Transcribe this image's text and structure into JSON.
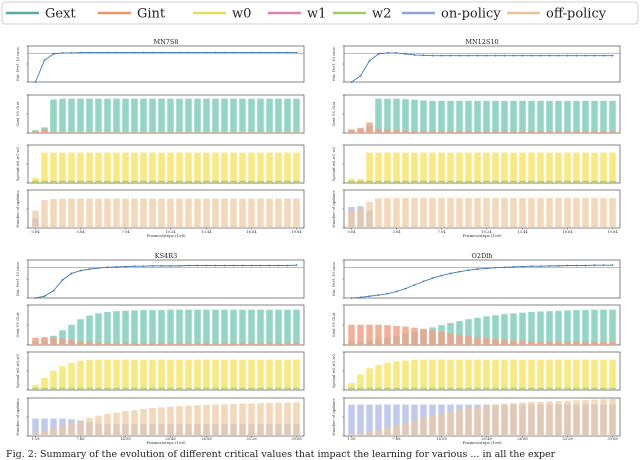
{
  "legend": [
    {
      "label": "Gext",
      "color": "#5aa9a0",
      "kind": "line"
    },
    {
      "label": "Gint",
      "color": "#e8956c",
      "kind": "line"
    },
    {
      "label": "w0",
      "color": "#e9dc5c",
      "kind": "line"
    },
    {
      "label": "w1",
      "color": "#d781b4",
      "kind": "line"
    },
    {
      "label": "w2",
      "color": "#9ccf63",
      "kind": "line"
    },
    {
      "label": "on-policy",
      "color": "#8da4d4",
      "kind": "line"
    },
    {
      "label": "off-policy",
      "color": "#e8c199",
      "kind": "line"
    }
  ],
  "colors": {
    "gext": "#7fcfb8",
    "gint": "#f0a287",
    "w0": "#f7e56a",
    "w1": "#e58fc2",
    "w2": "#a8d672",
    "on": "#a9b6e6",
    "off": "#efc9a0",
    "line": "#3f78b0",
    "frame": "#333333"
  },
  "caption": "Fig. 2: Summary of the evolution of different critical values that impact the learning for various ... in all the exper",
  "chart_data": [
    {
      "type": "bar",
      "title": "MN7S8",
      "xlabel": "Frames/steps (1e6)",
      "xticks": [
        "0.64",
        "3.84",
        "7.04",
        "10.24",
        "13.44",
        "16.64",
        "19.84"
      ],
      "ylabels": [
        "Ext. Perf. 10 runs",
        "Gext VS Gint",
        "Spread w0,w1,w2",
        "Number of updates"
      ],
      "n": 30,
      "series": {
        "perf": [
          0.0,
          0.64,
          0.82,
          0.85,
          0.85,
          0.86,
          0.86,
          0.86,
          0.86,
          0.86,
          0.86,
          0.86,
          0.86,
          0.86,
          0.86,
          0.86,
          0.86,
          0.86,
          0.86,
          0.86,
          0.86,
          0.86,
          0.86,
          0.86,
          0.86,
          0.86,
          0.86,
          0.86,
          0.86,
          0.86
        ],
        "gext": [
          0.08,
          0.16,
          0.96,
          0.98,
          0.98,
          0.98,
          0.98,
          0.98,
          0.98,
          0.98,
          0.98,
          0.98,
          0.98,
          0.98,
          0.98,
          0.98,
          0.98,
          0.98,
          0.98,
          0.98,
          0.98,
          0.98,
          0.98,
          0.98,
          0.98,
          0.98,
          0.98,
          0.98,
          0.98,
          0.98
        ],
        "gint": [
          0.06,
          0.12,
          0.03,
          0.02,
          0.02,
          0.02,
          0.02,
          0.02,
          0.02,
          0.02,
          0.02,
          0.02,
          0.02,
          0.02,
          0.02,
          0.02,
          0.02,
          0.02,
          0.02,
          0.02,
          0.02,
          0.02,
          0.02,
          0.02,
          0.02,
          0.02,
          0.02,
          0.02,
          0.02,
          0.02
        ],
        "w0": [
          0.15,
          0.87,
          0.87,
          0.87,
          0.87,
          0.87,
          0.87,
          0.87,
          0.87,
          0.87,
          0.87,
          0.87,
          0.87,
          0.87,
          0.87,
          0.87,
          0.87,
          0.87,
          0.87,
          0.87,
          0.87,
          0.87,
          0.87,
          0.87,
          0.87,
          0.87,
          0.87,
          0.87,
          0.87,
          0.87
        ],
        "w1": [
          0.06,
          0.06,
          0.06,
          0.06,
          0.06,
          0.06,
          0.06,
          0.06,
          0.06,
          0.06,
          0.06,
          0.06,
          0.06,
          0.06,
          0.06,
          0.06,
          0.06,
          0.06,
          0.06,
          0.06,
          0.06,
          0.06,
          0.06,
          0.06,
          0.06,
          0.06,
          0.06,
          0.06,
          0.06,
          0.06
        ],
        "w2": [
          0.06,
          0.06,
          0.06,
          0.06,
          0.06,
          0.06,
          0.06,
          0.06,
          0.06,
          0.06,
          0.06,
          0.06,
          0.06,
          0.06,
          0.06,
          0.06,
          0.06,
          0.06,
          0.06,
          0.06,
          0.06,
          0.06,
          0.06,
          0.06,
          0.06,
          0.06,
          0.06,
          0.06,
          0.06,
          0.06
        ],
        "on": [
          0.28,
          0.05,
          0.04,
          0.04,
          0.04,
          0.04,
          0.04,
          0.04,
          0.04,
          0.04,
          0.04,
          0.04,
          0.04,
          0.04,
          0.04,
          0.04,
          0.04,
          0.04,
          0.04,
          0.04,
          0.04,
          0.04,
          0.04,
          0.04,
          0.04,
          0.04,
          0.04,
          0.04,
          0.04,
          0.04
        ],
        "off": [
          0.5,
          0.8,
          0.83,
          0.84,
          0.84,
          0.84,
          0.84,
          0.84,
          0.84,
          0.84,
          0.84,
          0.84,
          0.84,
          0.84,
          0.84,
          0.84,
          0.84,
          0.84,
          0.84,
          0.84,
          0.84,
          0.84,
          0.84,
          0.84,
          0.84,
          0.84,
          0.84,
          0.84,
          0.84,
          0.84
        ]
      }
    },
    {
      "type": "bar",
      "title": "MN12S10",
      "xlabel": "Frames/steps (1e6)",
      "xticks": [
        "0.64",
        "3.84",
        "7.04",
        "10.24",
        "13.44",
        "16.64",
        "19.84"
      ],
      "ylabels": [
        "Ext. Perf. 10 runs",
        "Gext VS Gint",
        "Spread w0,w1,w2",
        "Number of updates"
      ],
      "n": 30,
      "series": {
        "perf": [
          0.0,
          0.18,
          0.62,
          0.82,
          0.85,
          0.85,
          0.82,
          0.79,
          0.78,
          0.77,
          0.77,
          0.77,
          0.77,
          0.77,
          0.77,
          0.77,
          0.77,
          0.77,
          0.77,
          0.77,
          0.77,
          0.77,
          0.77,
          0.77,
          0.77,
          0.77,
          0.77,
          0.77,
          0.77,
          0.77
        ],
        "gext": [
          0.1,
          0.1,
          0.2,
          0.98,
          0.98,
          0.98,
          0.97,
          0.95,
          0.93,
          0.92,
          0.92,
          0.92,
          0.92,
          0.92,
          0.92,
          0.92,
          0.92,
          0.92,
          0.92,
          0.92,
          0.92,
          0.92,
          0.92,
          0.92,
          0.92,
          0.92,
          0.92,
          0.92,
          0.92,
          0.92
        ],
        "gint": [
          0.1,
          0.15,
          0.3,
          0.12,
          0.1,
          0.08,
          0.07,
          0.06,
          0.06,
          0.06,
          0.06,
          0.06,
          0.06,
          0.06,
          0.06,
          0.06,
          0.06,
          0.06,
          0.06,
          0.06,
          0.06,
          0.06,
          0.06,
          0.06,
          0.06,
          0.06,
          0.06,
          0.06,
          0.06,
          0.06
        ],
        "w0": [
          0.12,
          0.12,
          0.87,
          0.87,
          0.87,
          0.87,
          0.87,
          0.87,
          0.87,
          0.87,
          0.87,
          0.87,
          0.87,
          0.87,
          0.87,
          0.87,
          0.87,
          0.87,
          0.87,
          0.87,
          0.87,
          0.87,
          0.87,
          0.87,
          0.87,
          0.87,
          0.87,
          0.87,
          0.87,
          0.87
        ],
        "w1": [
          0.06,
          0.06,
          0.06,
          0.06,
          0.06,
          0.06,
          0.06,
          0.06,
          0.06,
          0.06,
          0.06,
          0.06,
          0.06,
          0.06,
          0.06,
          0.06,
          0.06,
          0.06,
          0.06,
          0.06,
          0.06,
          0.06,
          0.06,
          0.06,
          0.06,
          0.06,
          0.06,
          0.06,
          0.06,
          0.06
        ],
        "w2": [
          0.06,
          0.06,
          0.06,
          0.06,
          0.06,
          0.06,
          0.06,
          0.06,
          0.06,
          0.06,
          0.06,
          0.06,
          0.06,
          0.06,
          0.06,
          0.06,
          0.06,
          0.06,
          0.06,
          0.06,
          0.06,
          0.06,
          0.06,
          0.06,
          0.06,
          0.06,
          0.06,
          0.06,
          0.06,
          0.06
        ],
        "on": [
          0.6,
          0.62,
          0.5,
          0.05,
          0.04,
          0.04,
          0.04,
          0.04,
          0.04,
          0.04,
          0.04,
          0.04,
          0.04,
          0.04,
          0.04,
          0.04,
          0.04,
          0.04,
          0.04,
          0.04,
          0.04,
          0.04,
          0.04,
          0.04,
          0.04,
          0.04,
          0.04,
          0.04,
          0.04,
          0.04
        ],
        "off": [
          0.5,
          0.55,
          0.75,
          0.85,
          0.86,
          0.86,
          0.86,
          0.86,
          0.86,
          0.86,
          0.86,
          0.86,
          0.86,
          0.86,
          0.86,
          0.86,
          0.86,
          0.86,
          0.86,
          0.86,
          0.86,
          0.86,
          0.86,
          0.86,
          0.86,
          0.86,
          0.86,
          0.86,
          0.86,
          0.86
        ]
      }
    },
    {
      "type": "bar",
      "title": "KS4R3",
      "xlabel": "Frames/steps (1e6)",
      "xticks": [
        "1.28",
        "7.68",
        "14.08",
        "20.48",
        "26.88",
        "33.28",
        "39.68"
      ],
      "ylabels": [
        "Ext. Perf. 10 runs",
        "Gext VS Gint",
        "Spread w0,w1,w2",
        "Number of updates"
      ],
      "n": 30,
      "series": {
        "perf": [
          0.0,
          0.05,
          0.2,
          0.5,
          0.68,
          0.76,
          0.8,
          0.83,
          0.85,
          0.86,
          0.87,
          0.88,
          0.88,
          0.89,
          0.89,
          0.89,
          0.89,
          0.9,
          0.9,
          0.9,
          0.9,
          0.9,
          0.9,
          0.9,
          0.9,
          0.9,
          0.9,
          0.9,
          0.9,
          0.91
        ],
        "gext": [
          0.1,
          0.15,
          0.25,
          0.4,
          0.55,
          0.7,
          0.8,
          0.86,
          0.9,
          0.92,
          0.93,
          0.94,
          0.95,
          0.95,
          0.95,
          0.96,
          0.96,
          0.96,
          0.96,
          0.96,
          0.96,
          0.96,
          0.96,
          0.96,
          0.96,
          0.96,
          0.96,
          0.96,
          0.96,
          0.96
        ],
        "gint": [
          0.2,
          0.22,
          0.2,
          0.18,
          0.14,
          0.1,
          0.08,
          0.07,
          0.06,
          0.06,
          0.06,
          0.06,
          0.06,
          0.06,
          0.06,
          0.06,
          0.06,
          0.06,
          0.06,
          0.06,
          0.06,
          0.06,
          0.06,
          0.06,
          0.06,
          0.06,
          0.06,
          0.06,
          0.06,
          0.06
        ],
        "w0": [
          0.15,
          0.35,
          0.55,
          0.68,
          0.78,
          0.84,
          0.86,
          0.87,
          0.87,
          0.87,
          0.87,
          0.87,
          0.87,
          0.87,
          0.87,
          0.87,
          0.87,
          0.87,
          0.87,
          0.87,
          0.87,
          0.87,
          0.87,
          0.87,
          0.87,
          0.87,
          0.87,
          0.87,
          0.87,
          0.87
        ],
        "w1": [
          0.06,
          0.06,
          0.06,
          0.06,
          0.06,
          0.06,
          0.06,
          0.06,
          0.06,
          0.06,
          0.06,
          0.06,
          0.06,
          0.06,
          0.06,
          0.06,
          0.06,
          0.06,
          0.06,
          0.06,
          0.06,
          0.06,
          0.06,
          0.06,
          0.06,
          0.06,
          0.06,
          0.06,
          0.06,
          0.06
        ],
        "w2": [
          0.06,
          0.06,
          0.06,
          0.06,
          0.06,
          0.06,
          0.06,
          0.06,
          0.06,
          0.06,
          0.06,
          0.06,
          0.06,
          0.06,
          0.06,
          0.06,
          0.06,
          0.06,
          0.06,
          0.06,
          0.06,
          0.06,
          0.06,
          0.06,
          0.06,
          0.06,
          0.06,
          0.06,
          0.06,
          0.06
        ],
        "on": [
          0.5,
          0.5,
          0.5,
          0.5,
          0.48,
          0.44,
          0.4,
          0.36,
          0.34,
          0.34,
          0.34,
          0.34,
          0.34,
          0.34,
          0.34,
          0.34,
          0.34,
          0.34,
          0.34,
          0.34,
          0.34,
          0.34,
          0.34,
          0.34,
          0.34,
          0.34,
          0.34,
          0.34,
          0.34,
          0.34
        ],
        "off": [
          0.1,
          0.15,
          0.22,
          0.3,
          0.38,
          0.45,
          0.52,
          0.58,
          0.63,
          0.67,
          0.71,
          0.74,
          0.77,
          0.8,
          0.82,
          0.84,
          0.86,
          0.87,
          0.88,
          0.89,
          0.9,
          0.91,
          0.92,
          0.93,
          0.93,
          0.94,
          0.95,
          0.95,
          0.96,
          0.96
        ]
      }
    },
    {
      "type": "bar",
      "title": "O2Dlh",
      "xlabel": "Frames/steps (1e6)",
      "xticks": [
        "1.28",
        "7.68",
        "14.08",
        "20.48",
        "26.88",
        "33.28",
        "39.68"
      ],
      "ylabels": [
        "Ext. Perf. 10 runs",
        "Gext VS Gint",
        "Spread w0,w1,w2",
        "Number of updates"
      ],
      "n": 30,
      "series": {
        "perf": [
          0.0,
          0.02,
          0.05,
          0.08,
          0.12,
          0.18,
          0.26,
          0.36,
          0.46,
          0.55,
          0.62,
          0.68,
          0.73,
          0.77,
          0.8,
          0.82,
          0.84,
          0.85,
          0.86,
          0.87,
          0.88,
          0.88,
          0.89,
          0.89,
          0.9,
          0.9,
          0.9,
          0.91,
          0.91,
          0.91
        ],
        "gext": [
          0.1,
          0.1,
          0.12,
          0.15,
          0.2,
          0.25,
          0.3,
          0.36,
          0.42,
          0.48,
          0.54,
          0.6,
          0.65,
          0.7,
          0.74,
          0.78,
          0.81,
          0.84,
          0.86,
          0.88,
          0.9,
          0.91,
          0.92,
          0.93,
          0.94,
          0.95,
          0.95,
          0.96,
          0.96,
          0.96
        ],
        "gint": [
          0.55,
          0.55,
          0.55,
          0.55,
          0.54,
          0.52,
          0.5,
          0.47,
          0.44,
          0.4,
          0.36,
          0.32,
          0.28,
          0.25,
          0.22,
          0.19,
          0.17,
          0.15,
          0.13,
          0.12,
          0.1,
          0.1,
          0.09,
          0.09,
          0.08,
          0.08,
          0.08,
          0.08,
          0.08,
          0.08
        ],
        "w0": [
          0.2,
          0.45,
          0.62,
          0.72,
          0.78,
          0.82,
          0.84,
          0.86,
          0.87,
          0.87,
          0.87,
          0.87,
          0.87,
          0.87,
          0.87,
          0.87,
          0.87,
          0.87,
          0.87,
          0.87,
          0.87,
          0.87,
          0.87,
          0.87,
          0.87,
          0.87,
          0.87,
          0.87,
          0.87,
          0.87
        ],
        "w1": [
          0.06,
          0.06,
          0.06,
          0.06,
          0.06,
          0.06,
          0.06,
          0.06,
          0.06,
          0.06,
          0.06,
          0.06,
          0.06,
          0.06,
          0.06,
          0.06,
          0.06,
          0.06,
          0.06,
          0.06,
          0.06,
          0.06,
          0.06,
          0.06,
          0.06,
          0.06,
          0.06,
          0.06,
          0.06,
          0.06
        ],
        "w2": [
          0.06,
          0.06,
          0.06,
          0.06,
          0.06,
          0.06,
          0.06,
          0.06,
          0.06,
          0.06,
          0.06,
          0.06,
          0.06,
          0.06,
          0.06,
          0.06,
          0.06,
          0.06,
          0.06,
          0.06,
          0.06,
          0.06,
          0.06,
          0.06,
          0.06,
          0.06,
          0.06,
          0.06,
          0.06,
          0.06
        ],
        "on": [
          0.9,
          0.9,
          0.9,
          0.9,
          0.9,
          0.9,
          0.9,
          0.9,
          0.9,
          0.9,
          0.9,
          0.9,
          0.9,
          0.9,
          0.9,
          0.9,
          0.9,
          0.9,
          0.9,
          0.9,
          0.9,
          0.9,
          0.9,
          0.9,
          0.9,
          0.9,
          0.9,
          0.9,
          0.9,
          0.9
        ],
        "off": [
          0.05,
          0.08,
          0.12,
          0.17,
          0.23,
          0.3,
          0.37,
          0.44,
          0.51,
          0.58,
          0.64,
          0.7,
          0.75,
          0.8,
          0.84,
          0.87,
          0.9,
          0.92,
          0.94,
          0.96,
          0.97,
          0.98,
          0.99,
          1.0,
          1.01,
          1.02,
          1.03,
          1.04,
          1.05,
          1.06
        ]
      }
    }
  ]
}
